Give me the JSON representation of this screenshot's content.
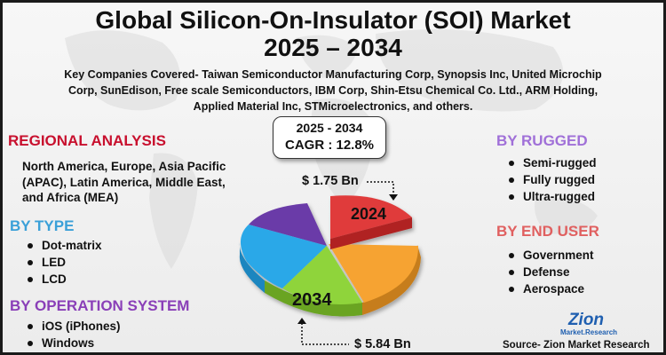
{
  "title": {
    "line1": "Global Silicon-On-Insulator (SOI) Market",
    "line2": "2025 – 2034"
  },
  "companies_text": "Key Companies Covered- Taiwan Semiconductor Manufacturing Corp, Synopsis Inc, United Microchip Corp, SunEdison, Free scale Semiconductors, IBM Corp, Shin-Etsu Chemical Co. Ltd., ARM Holding, Applied Material Inc, STMicroelectronics, and others.",
  "forecast": {
    "period": "2025 - 2034",
    "cagr": "CAGR : 12.8%"
  },
  "regional": {
    "heading": "REGIONAL ANALYSIS",
    "text": "North America, Europe, Asia Pacific (APAC), Latin America, Middle East, and Africa (MEA)"
  },
  "by_type": {
    "heading": "BY TYPE",
    "items": [
      "Dot-matrix",
      "LED",
      "LCD"
    ]
  },
  "by_os": {
    "heading": "BY OPERATION SYSTEM",
    "items": [
      "iOS (iPhones)",
      "Windows"
    ]
  },
  "by_rugged": {
    "heading": "BY RUGGED",
    "items": [
      "Semi-rugged",
      "Fully rugged",
      "Ultra-rugged"
    ]
  },
  "by_end_user": {
    "heading": "BY END USER",
    "items": [
      "Government",
      "Defense",
      "Aerospace"
    ]
  },
  "pie": {
    "label_2024": "2024",
    "label_2034": "2034",
    "value_2024": "$ 1.75 Bn",
    "value_2034": "$ 5.84 Bn"
  },
  "logo": {
    "line1": "Zion",
    "line2": "Market.Research"
  },
  "source": "Source- Zion Market Research",
  "colors": {
    "regional_heading": "#c8102e",
    "type_heading": "#3aa0d8",
    "os_heading": "#8a3fb8",
    "rugged_heading": "#a070d8",
    "end_user_heading": "#e06060",
    "slice_red": "#e03a3a",
    "slice_orange": "#f6a330",
    "slice_green": "#8fd43a",
    "slice_blue": "#2aa8e8",
    "slice_purple": "#6a3aa8"
  }
}
